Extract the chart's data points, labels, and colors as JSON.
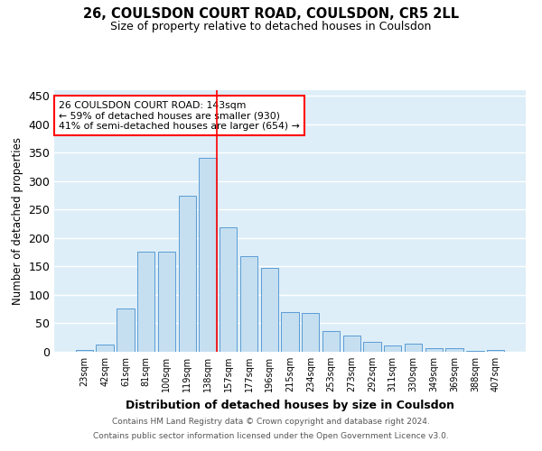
{
  "title": "26, COULSDON COURT ROAD, COULSDON, CR5 2LL",
  "subtitle": "Size of property relative to detached houses in Coulsdon",
  "xlabel": "Distribution of detached houses by size in Coulsdon",
  "ylabel": "Number of detached properties",
  "bar_labels": [
    "23sqm",
    "42sqm",
    "61sqm",
    "81sqm",
    "100sqm",
    "119sqm",
    "138sqm",
    "157sqm",
    "177sqm",
    "196sqm",
    "215sqm",
    "234sqm",
    "253sqm",
    "273sqm",
    "292sqm",
    "311sqm",
    "330sqm",
    "349sqm",
    "369sqm",
    "388sqm",
    "407sqm"
  ],
  "bar_heights": [
    3,
    12,
    76,
    176,
    176,
    275,
    341,
    219,
    168,
    147,
    70,
    69,
    37,
    28,
    18,
    11,
    14,
    6,
    6,
    1,
    3
  ],
  "bar_color": "#c5dff0",
  "bar_edge_color": "#5b9bd5",
  "vline_color": "red",
  "annotation_text": "26 COULSDON COURT ROAD: 143sqm\n← 59% of detached houses are smaller (930)\n41% of semi-detached houses are larger (654) →",
  "annotation_box_color": "white",
  "annotation_box_edge": "red",
  "ylim": [
    0,
    460
  ],
  "bg_color": "#ddeef8",
  "grid_color": "white",
  "footer1": "Contains HM Land Registry data © Crown copyright and database right 2024.",
  "footer2": "Contains public sector information licensed under the Open Government Licence v3.0."
}
